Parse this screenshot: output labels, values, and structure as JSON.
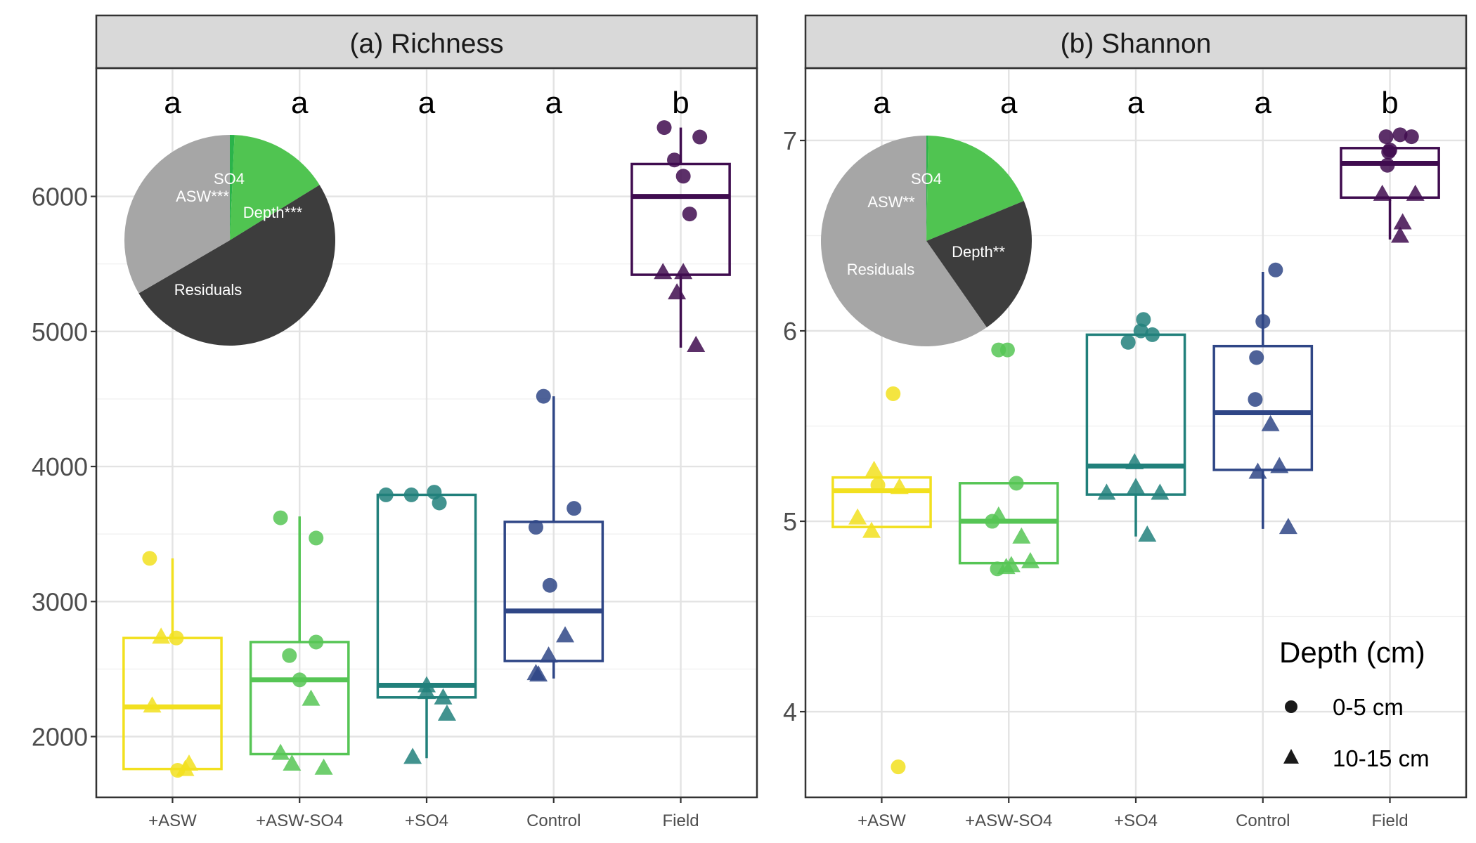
{
  "chart_data": [
    {
      "type": "box",
      "title": "(a) Richness",
      "categories": [
        "+ASW",
        "+ASW-SO4",
        "+SO4",
        "Control",
        "Field"
      ],
      "ylim": [
        1550,
        6950
      ],
      "yticks": [
        2000,
        3000,
        4000,
        5000,
        6000
      ],
      "significance_letters": [
        "a",
        "a",
        "a",
        "a",
        "b"
      ],
      "boxes": [
        {
          "q1": 1760,
          "median": 2220,
          "q3": 2730,
          "whisker_low": 1760,
          "whisker_high": 3320
        },
        {
          "q1": 1870,
          "median": 2420,
          "q3": 2700,
          "whisker_low": 1870,
          "whisker_high": 3630
        },
        {
          "q1": 2290,
          "median": 2380,
          "q3": 3790,
          "whisker_low": 1840,
          "whisker_high": 3790
        },
        {
          "q1": 2560,
          "median": 2930,
          "q3": 3590,
          "whisker_low": 2430,
          "whisker_high": 4520
        },
        {
          "q1": 5420,
          "median": 6000,
          "q3": 6240,
          "whisker_low": 4880,
          "whisker_high": 6510
        }
      ],
      "points": {
        "0-5 cm": [
          [
            [
              -0.18,
              3320
            ],
            [
              0.03,
              2730
            ],
            [
              0.04,
              1750
            ]
          ],
          [
            [
              -0.15,
              3620
            ],
            [
              0.13,
              3470
            ],
            [
              -0.08,
              2600
            ],
            [
              0.13,
              2700
            ],
            [
              0.0,
              2420
            ]
          ],
          [
            [
              -0.32,
              3790
            ],
            [
              -0.12,
              3790
            ],
            [
              0.06,
              3810
            ],
            [
              0.1,
              3730
            ]
          ],
          [
            [
              -0.14,
              3550
            ],
            [
              -0.08,
              4520
            ],
            [
              0.16,
              3690
            ],
            [
              -0.03,
              3120
            ]
          ],
          [
            [
              -0.13,
              6510
            ],
            [
              0.15,
              6440
            ],
            [
              -0.05,
              6270
            ],
            [
              0.02,
              6150
            ],
            [
              0.07,
              5870
            ]
          ]
        ],
        "10-15 cm": [
          [
            [
              -0.09,
              2740
            ],
            [
              -0.16,
              2230
            ],
            [
              0.13,
              1800
            ],
            [
              0.1,
              1760
            ]
          ],
          [
            [
              0.09,
              2280
            ],
            [
              -0.15,
              1880
            ],
            [
              -0.06,
              1800
            ],
            [
              0.19,
              1770
            ]
          ],
          [
            [
              0.0,
              2380
            ],
            [
              0.0,
              2330
            ],
            [
              0.13,
              2290
            ],
            [
              0.16,
              2170
            ],
            [
              -0.11,
              1850
            ]
          ],
          [
            [
              0.09,
              2750
            ],
            [
              -0.04,
              2600
            ],
            [
              -0.12,
              2460
            ],
            [
              -0.14,
              2470
            ]
          ],
          [
            [
              -0.14,
              5440
            ],
            [
              0.02,
              5440
            ],
            [
              -0.03,
              5290
            ],
            [
              0.12,
              4900
            ]
          ]
        ]
      },
      "pie": [
        {
          "label": "SO4",
          "value": 0.7,
          "color": "#2ab34a"
        },
        {
          "label": "ASW***",
          "value": 15.5,
          "color": "#50c451"
        },
        {
          "label": "Depth***",
          "value": 50.4,
          "color": "#3d3d3d"
        },
        {
          "label": "Residuals",
          "value": 33.4,
          "color": "#a6a6a6"
        }
      ]
    },
    {
      "type": "box",
      "title": "(b) Shannon",
      "categories": [
        "+ASW",
        "+ASW-SO4",
        "+SO4",
        "Control",
        "Field"
      ],
      "ylim": [
        3.55,
        7.38
      ],
      "yticks": [
        4,
        5,
        6,
        7
      ],
      "significance_letters": [
        "a",
        "a",
        "a",
        "a",
        "b"
      ],
      "boxes": [
        {
          "q1": 4.97,
          "median": 5.16,
          "q3": 5.23,
          "whisker_low": 4.97,
          "whisker_high": 5.23
        },
        {
          "q1": 4.78,
          "median": 5.0,
          "q3": 5.2,
          "whisker_low": 4.78,
          "whisker_high": 5.2
        },
        {
          "q1": 5.14,
          "median": 5.29,
          "q3": 5.98,
          "whisker_low": 4.92,
          "whisker_high": 5.98
        },
        {
          "q1": 5.27,
          "median": 5.57,
          "q3": 5.92,
          "whisker_low": 4.96,
          "whisker_high": 6.31
        },
        {
          "q1": 6.7,
          "median": 6.88,
          "q3": 6.96,
          "whisker_low": 6.48,
          "whisker_high": 6.96
        }
      ],
      "points": {
        "0-5 cm": [
          [
            [
              0.09,
              5.67
            ],
            [
              -0.03,
              5.19
            ],
            [
              0.13,
              3.71
            ]
          ],
          [
            [
              -0.08,
              5.9
            ],
            [
              -0.01,
              5.9
            ],
            [
              0.06,
              5.2
            ],
            [
              -0.13,
              5.0
            ],
            [
              -0.09,
              4.75
            ]
          ],
          [
            [
              -0.06,
              5.94
            ],
            [
              0.04,
              6.0
            ],
            [
              0.06,
              6.06
            ],
            [
              0.13,
              5.98
            ]
          ],
          [
            [
              0.0,
              6.05
            ],
            [
              0.1,
              6.32
            ],
            [
              -0.05,
              5.86
            ],
            [
              -0.06,
              5.64
            ]
          ],
          [
            [
              -0.01,
              6.94
            ],
            [
              -0.02,
              6.87
            ],
            [
              0.0,
              6.95
            ],
            [
              0.08,
              7.03
            ],
            [
              -0.03,
              7.02
            ],
            [
              0.17,
              7.02
            ]
          ]
        ],
        "10-15 cm": [
          [
            [
              -0.06,
              5.27
            ],
            [
              0.14,
              5.18
            ],
            [
              -0.19,
              5.02
            ],
            [
              -0.08,
              4.95
            ]
          ],
          [
            [
              -0.08,
              5.03
            ],
            [
              0.1,
              4.92
            ],
            [
              0.17,
              4.79
            ],
            [
              -0.02,
              4.76
            ],
            [
              0.02,
              4.77
            ]
          ],
          [
            [
              -0.01,
              5.31
            ],
            [
              -0.23,
              5.15
            ],
            [
              0.0,
              5.18
            ],
            [
              0.19,
              5.15
            ],
            [
              0.09,
              4.93
            ]
          ],
          [
            [
              -0.04,
              5.26
            ],
            [
              0.06,
              5.51
            ],
            [
              0.13,
              5.29
            ],
            [
              0.2,
              4.97
            ]
          ],
          [
            [
              -0.06,
              6.72
            ],
            [
              0.2,
              6.72
            ],
            [
              0.1,
              6.57
            ],
            [
              0.08,
              6.5
            ]
          ]
        ]
      },
      "pie": [
        {
          "label": "SO4",
          "value": 0.3,
          "color": "#2ab34a"
        },
        {
          "label": "ASW**",
          "value": 18.5,
          "color": "#50c451"
        },
        {
          "label": "Depth**",
          "value": 21.5,
          "color": "#3d3d3d"
        },
        {
          "label": "Residuals",
          "value": 59.7,
          "color": "#a6a6a6"
        }
      ]
    }
  ],
  "palette": [
    "#f2e01f",
    "#56c555",
    "#21807b",
    "#2f4686",
    "#3f0c4f"
  ],
  "legend": {
    "title": "Depth (cm)",
    "items": [
      {
        "label": "0-5 cm",
        "shape": "circle"
      },
      {
        "label": "10-15 cm",
        "shape": "triangle"
      }
    ]
  }
}
